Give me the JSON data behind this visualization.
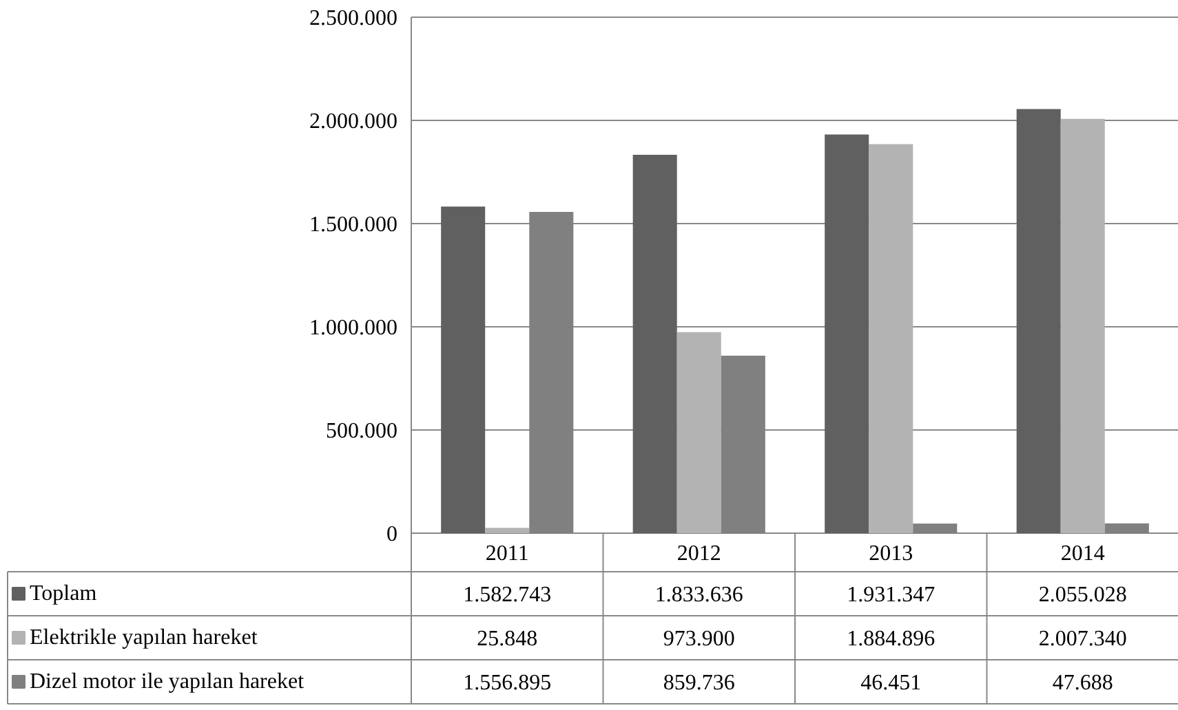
{
  "chart_data": {
    "type": "bar",
    "categories": [
      "2011",
      "2012",
      "2013",
      "2014"
    ],
    "series": [
      {
        "name": "Toplam",
        "color": "#606060",
        "values": [
          1582743,
          1833636,
          1931347,
          2055028
        ],
        "value_labels": [
          "1.582.743",
          "1.833.636",
          "1.931.347",
          "2.055.028"
        ]
      },
      {
        "name": "Elektrikle yapılan hareket",
        "color": "#b3b3b3",
        "values": [
          25848,
          973900,
          1884896,
          2007340
        ],
        "value_labels": [
          "25.848",
          "973.900",
          "1.884.896",
          "2.007.340"
        ]
      },
      {
        "name": "Dizel motor ile yapılan hareket",
        "color": "#808080",
        "values": [
          1556895,
          859736,
          46451,
          47688
        ],
        "value_labels": [
          "1.556.895",
          "859.736",
          "46.451",
          "47.688"
        ]
      }
    ],
    "ylim": [
      0,
      2500000
    ],
    "yticks": [
      {
        "value": 0,
        "label": "0"
      },
      {
        "value": 500000,
        "label": "500.000"
      },
      {
        "value": 1000000,
        "label": "1.000.000"
      },
      {
        "value": 1500000,
        "label": "1.500.000"
      },
      {
        "value": 2000000,
        "label": "2.000.000"
      },
      {
        "value": 2500000,
        "label": "2.500.000"
      }
    ],
    "grid": "y",
    "legend": "bottom"
  }
}
